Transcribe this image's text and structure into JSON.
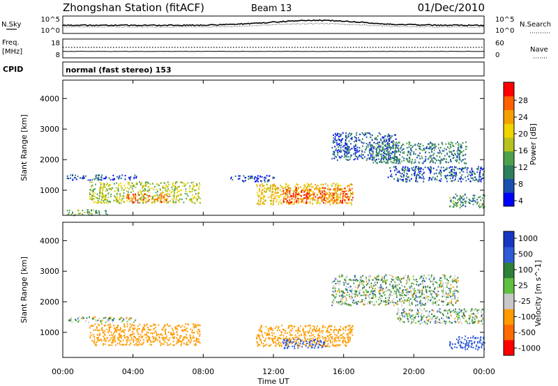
{
  "header": {
    "title": "Zhongshan Station (fitACF)",
    "beam": "Beam 13",
    "date": "01/Dec/2010",
    "mode": "normal (fast stereo) 153"
  },
  "strip": {
    "nsky_label": "N.Sky",
    "nsky_ticks": [
      "10^5",
      "10^0"
    ],
    "nsearch_label": "N.Search",
    "nsearch_ticks": [
      "10^5",
      "10^0"
    ],
    "freq_label": "Freq.",
    "freq_unit": "[MHz]",
    "freq_ticks": [
      "18",
      "8"
    ],
    "nave_label": "Nave",
    "nave_ticks": [
      "60",
      "0"
    ],
    "cpid_label": "CPID"
  },
  "colors": {
    "power": [
      "#0000ff",
      "#1a4fb0",
      "#2e7f5c",
      "#4ea04a",
      "#b8c21e",
      "#f0d400",
      "#f59f00",
      "#ff6000",
      "#ff0000"
    ],
    "velocity": [
      "#1736c4",
      "#2f5bd6",
      "#2e7f3a",
      "#60c040",
      "#c8c8c8",
      "#ff9b00",
      "#ff6a00",
      "#ff0000"
    ]
  },
  "chart_data": [
    {
      "type": "heatmap",
      "title": "",
      "xlabel": "Time UT",
      "ylabel": "Slant Range [km]",
      "x_ticks": [
        "00:00",
        "04:00",
        "08:00",
        "12:00",
        "16:00",
        "20:00",
        "00:00"
      ],
      "y_ticks": [
        "1000",
        "2000",
        "3000",
        "4000"
      ],
      "ylim": [
        180,
        4600
      ],
      "colorbar": {
        "label": "Power [dB]",
        "ticks": [
          "28",
          "24",
          "20",
          "16",
          "12",
          "8",
          "4"
        ],
        "range": [
          0,
          32
        ]
      },
      "clusters": [
        {
          "t0": 0.2,
          "t1": 4.2,
          "r0": 1350,
          "r1": 1530,
          "v": 6
        },
        {
          "t0": 1.5,
          "t1": 7.8,
          "r0": 600,
          "r1": 1300,
          "v": 16
        },
        {
          "t0": 3.6,
          "t1": 6.0,
          "r0": 620,
          "r1": 900,
          "v": 26
        },
        {
          "t0": 0.2,
          "t1": 2.5,
          "r0": 200,
          "r1": 380,
          "v": 12
        },
        {
          "t0": 11.0,
          "t1": 16.5,
          "r0": 550,
          "r1": 1250,
          "v": 20
        },
        {
          "t0": 12.5,
          "t1": 16.5,
          "r0": 600,
          "r1": 1100,
          "v": 27
        },
        {
          "t0": 15.3,
          "t1": 19.0,
          "r0": 2000,
          "r1": 2900,
          "v": 6
        },
        {
          "t0": 17.5,
          "t1": 23.0,
          "r0": 1900,
          "r1": 2600,
          "v": 9
        },
        {
          "t0": 18.5,
          "t1": 24.0,
          "r0": 1300,
          "r1": 1800,
          "v": 6
        },
        {
          "t0": 22.0,
          "t1": 24.0,
          "r0": 450,
          "r1": 900,
          "v": 10
        },
        {
          "t0": 9.5,
          "t1": 12.0,
          "r0": 1300,
          "r1": 1500,
          "v": 5
        }
      ]
    },
    {
      "type": "heatmap",
      "title": "",
      "xlabel": "Time UT",
      "ylabel": "Slant Range [km]",
      "x_ticks": [
        "00:00",
        "04:00",
        "08:00",
        "12:00",
        "16:00",
        "20:00",
        "00:00"
      ],
      "y_ticks": [
        "1000",
        "2000",
        "3000",
        "4000"
      ],
      "ylim": [
        180,
        4600
      ],
      "colorbar": {
        "label": "Velocity [m s^-1]",
        "ticks": [
          "1000",
          "500",
          "100",
          "25",
          "-25",
          "-100",
          "-500",
          "-1000"
        ],
        "range": [
          -1000,
          1000
        ]
      },
      "clusters": [
        {
          "t0": 1.5,
          "t1": 7.8,
          "r0": 600,
          "r1": 1300,
          "v": -300
        },
        {
          "t0": 0.2,
          "t1": 4.2,
          "r0": 1350,
          "r1": 1530,
          "v": 0
        },
        {
          "t0": 11.0,
          "t1": 16.5,
          "r0": 550,
          "r1": 1250,
          "v": -250
        },
        {
          "t0": 15.3,
          "t1": 22.5,
          "r0": 1900,
          "r1": 2900,
          "v": 0
        },
        {
          "t0": 19.0,
          "t1": 24.0,
          "r0": 1300,
          "r1": 1800,
          "v": 0
        },
        {
          "t0": 22.0,
          "t1": 24.0,
          "r0": 450,
          "r1": 900,
          "v": 300
        },
        {
          "t0": 12.5,
          "t1": 15.0,
          "r0": 500,
          "r1": 800,
          "v": 250
        }
      ]
    }
  ]
}
